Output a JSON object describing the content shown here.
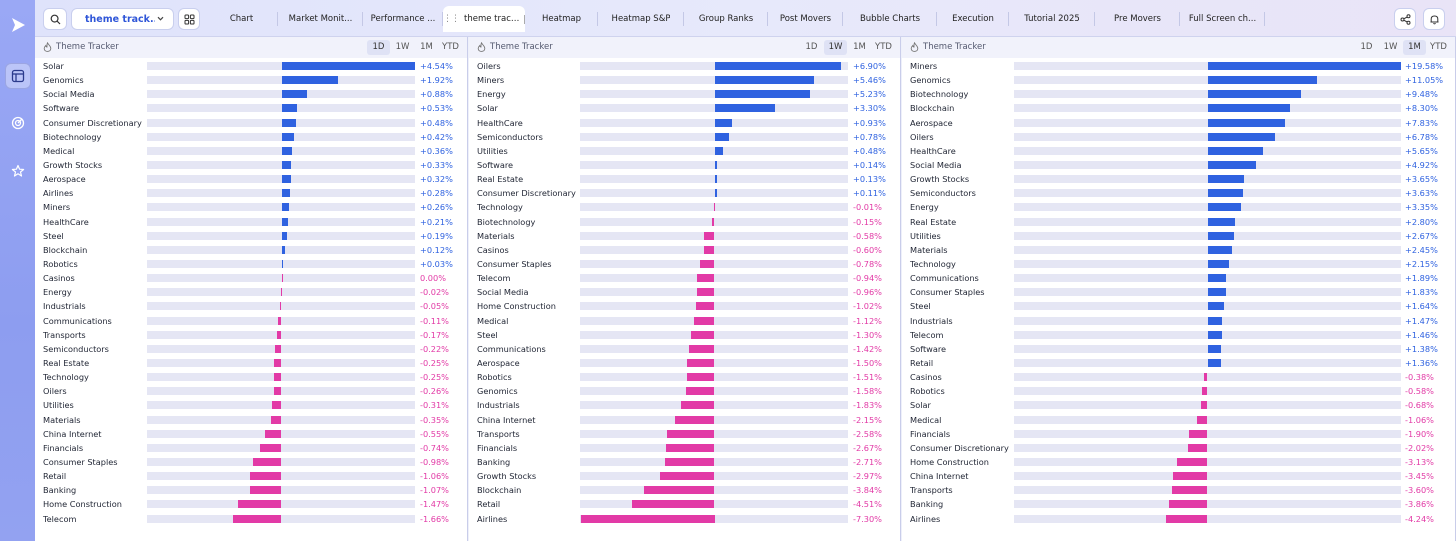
{
  "app": {
    "logo_icon": "play-logo"
  },
  "rail": {
    "items": [
      {
        "icon": "layout-icon",
        "active": true
      },
      {
        "icon": "target-icon",
        "active": false
      },
      {
        "icon": "star-icon",
        "active": false
      }
    ]
  },
  "toolbar": {
    "search_icon": "search-icon",
    "watchlist_value": "theme track...",
    "tabs": [
      {
        "label": "Chart",
        "width": 73
      },
      {
        "label": "Market Monit...",
        "width": 85
      },
      {
        "label": "Performance ...",
        "width": 80
      },
      {
        "label": "theme tracker",
        "width": 82,
        "active": true
      },
      {
        "label": "Heatmap",
        "width": 73
      },
      {
        "label": "Heatmap S&P",
        "width": 86
      },
      {
        "label": "Group Ranks",
        "width": 84
      },
      {
        "label": "Post Movers",
        "width": 75
      },
      {
        "label": "Bubble Charts",
        "width": 94
      },
      {
        "label": "Execution",
        "width": 72
      },
      {
        "label": "Tutorial 2025",
        "width": 86
      },
      {
        "label": "Pre Movers",
        "width": 85
      },
      {
        "label": "Full Screen ch...",
        "width": 85
      }
    ]
  },
  "colors": {
    "positive": "#2f62e0",
    "negative": "#e23aa6",
    "track": "#e5e6f4",
    "tab_active_text": "#2f56d8"
  },
  "panels": [
    {
      "title": "Theme Tracker",
      "periods": [
        "1D",
        "1W",
        "1M",
        "YTD"
      ],
      "active_period": "1D",
      "max_abs": 4.54,
      "rows": [
        {
          "name": "Solar",
          "value": 4.54,
          "label": "+4.54%"
        },
        {
          "name": "Genomics",
          "value": 1.92,
          "label": "+1.92%"
        },
        {
          "name": "Social Media",
          "value": 0.88,
          "label": "+0.88%"
        },
        {
          "name": "Software",
          "value": 0.53,
          "label": "+0.53%"
        },
        {
          "name": "Consumer Discretionary",
          "value": 0.48,
          "label": "+0.48%"
        },
        {
          "name": "Biotechnology",
          "value": 0.42,
          "label": "+0.42%"
        },
        {
          "name": "Medical",
          "value": 0.36,
          "label": "+0.36%"
        },
        {
          "name": "Growth Stocks",
          "value": 0.33,
          "label": "+0.33%"
        },
        {
          "name": "Aerospace",
          "value": 0.32,
          "label": "+0.32%"
        },
        {
          "name": "Airlines",
          "value": 0.28,
          "label": "+0.28%"
        },
        {
          "name": "Miners",
          "value": 0.26,
          "label": "+0.26%"
        },
        {
          "name": "HealthCare",
          "value": 0.21,
          "label": "+0.21%"
        },
        {
          "name": "Steel",
          "value": 0.19,
          "label": "+0.19%"
        },
        {
          "name": "Blockchain",
          "value": 0.12,
          "label": "+0.12%"
        },
        {
          "name": "Robotics",
          "value": 0.03,
          "label": "+0.03%"
        },
        {
          "name": "Casinos",
          "value": 0.0,
          "label": "0.00%"
        },
        {
          "name": "Energy",
          "value": -0.02,
          "label": "-0.02%"
        },
        {
          "name": "Industrials",
          "value": -0.05,
          "label": "-0.05%"
        },
        {
          "name": "Communications",
          "value": -0.11,
          "label": "-0.11%"
        },
        {
          "name": "Transports",
          "value": -0.17,
          "label": "-0.17%"
        },
        {
          "name": "Semiconductors",
          "value": -0.22,
          "label": "-0.22%"
        },
        {
          "name": "Real Estate",
          "value": -0.25,
          "label": "-0.25%"
        },
        {
          "name": "Technology",
          "value": -0.25,
          "label": "-0.25%"
        },
        {
          "name": "Oilers",
          "value": -0.26,
          "label": "-0.26%"
        },
        {
          "name": "Utilities",
          "value": -0.31,
          "label": "-0.31%"
        },
        {
          "name": "Materials",
          "value": -0.35,
          "label": "-0.35%"
        },
        {
          "name": "China Internet",
          "value": -0.55,
          "label": "-0.55%"
        },
        {
          "name": "Financials",
          "value": -0.74,
          "label": "-0.74%"
        },
        {
          "name": "Consumer Staples",
          "value": -0.98,
          "label": "-0.98%"
        },
        {
          "name": "Retail",
          "value": -1.06,
          "label": "-1.06%"
        },
        {
          "name": "Banking",
          "value": -1.07,
          "label": "-1.07%"
        },
        {
          "name": "Home Construction",
          "value": -1.47,
          "label": "-1.47%"
        },
        {
          "name": "Telecom",
          "value": -1.66,
          "label": "-1.66%"
        }
      ]
    },
    {
      "title": "Theme Tracker",
      "periods": [
        "1D",
        "1W",
        "1M",
        "YTD"
      ],
      "active_period": "1W",
      "max_abs": 7.3,
      "rows": [
        {
          "name": "Oilers",
          "value": 6.9,
          "label": "+6.90%"
        },
        {
          "name": "Miners",
          "value": 5.46,
          "label": "+5.46%"
        },
        {
          "name": "Energy",
          "value": 5.23,
          "label": "+5.23%"
        },
        {
          "name": "Solar",
          "value": 3.3,
          "label": "+3.30%"
        },
        {
          "name": "HealthCare",
          "value": 0.93,
          "label": "+0.93%"
        },
        {
          "name": "Semiconductors",
          "value": 0.78,
          "label": "+0.78%"
        },
        {
          "name": "Utilities",
          "value": 0.48,
          "label": "+0.48%"
        },
        {
          "name": "Software",
          "value": 0.14,
          "label": "+0.14%"
        },
        {
          "name": "Real Estate",
          "value": 0.13,
          "label": "+0.13%"
        },
        {
          "name": "Consumer Discretionary",
          "value": 0.11,
          "label": "+0.11%"
        },
        {
          "name": "Technology",
          "value": -0.01,
          "label": "-0.01%"
        },
        {
          "name": "Biotechnology",
          "value": -0.15,
          "label": "-0.15%"
        },
        {
          "name": "Materials",
          "value": -0.58,
          "label": "-0.58%"
        },
        {
          "name": "Casinos",
          "value": -0.6,
          "label": "-0.60%"
        },
        {
          "name": "Consumer Staples",
          "value": -0.78,
          "label": "-0.78%"
        },
        {
          "name": "Telecom",
          "value": -0.94,
          "label": "-0.94%"
        },
        {
          "name": "Social Media",
          "value": -0.96,
          "label": "-0.96%"
        },
        {
          "name": "Home Construction",
          "value": -1.02,
          "label": "-1.02%"
        },
        {
          "name": "Medical",
          "value": -1.12,
          "label": "-1.12%"
        },
        {
          "name": "Steel",
          "value": -1.3,
          "label": "-1.30%"
        },
        {
          "name": "Communications",
          "value": -1.42,
          "label": "-1.42%"
        },
        {
          "name": "Aerospace",
          "value": -1.5,
          "label": "-1.50%"
        },
        {
          "name": "Robotics",
          "value": -1.51,
          "label": "-1.51%"
        },
        {
          "name": "Genomics",
          "value": -1.58,
          "label": "-1.58%"
        },
        {
          "name": "Industrials",
          "value": -1.83,
          "label": "-1.83%"
        },
        {
          "name": "China Internet",
          "value": -2.15,
          "label": "-2.15%"
        },
        {
          "name": "Transports",
          "value": -2.58,
          "label": "-2.58%"
        },
        {
          "name": "Financials",
          "value": -2.67,
          "label": "-2.67%"
        },
        {
          "name": "Banking",
          "value": -2.71,
          "label": "-2.71%"
        },
        {
          "name": "Growth Stocks",
          "value": -2.97,
          "label": "-2.97%"
        },
        {
          "name": "Blockchain",
          "value": -3.84,
          "label": "-3.84%"
        },
        {
          "name": "Retail",
          "value": -4.51,
          "label": "-4.51%"
        },
        {
          "name": "Airlines",
          "value": -7.3,
          "label": "-7.30%"
        }
      ]
    },
    {
      "title": "Theme Tracker",
      "periods": [
        "1D",
        "1W",
        "1M",
        "YTD"
      ],
      "active_period": "1M",
      "max_abs": 19.58,
      "rows": [
        {
          "name": "Miners",
          "value": 19.58,
          "label": "+19.58%"
        },
        {
          "name": "Genomics",
          "value": 11.05,
          "label": "+11.05%"
        },
        {
          "name": "Biotechnology",
          "value": 9.48,
          "label": "+9.48%"
        },
        {
          "name": "Blockchain",
          "value": 8.3,
          "label": "+8.30%"
        },
        {
          "name": "Aerospace",
          "value": 7.83,
          "label": "+7.83%"
        },
        {
          "name": "Oilers",
          "value": 6.78,
          "label": "+6.78%"
        },
        {
          "name": "HealthCare",
          "value": 5.65,
          "label": "+5.65%"
        },
        {
          "name": "Social Media",
          "value": 4.92,
          "label": "+4.92%"
        },
        {
          "name": "Growth Stocks",
          "value": 3.65,
          "label": "+3.65%"
        },
        {
          "name": "Semiconductors",
          "value": 3.63,
          "label": "+3.63%"
        },
        {
          "name": "Energy",
          "value": 3.35,
          "label": "+3.35%"
        },
        {
          "name": "Real Estate",
          "value": 2.8,
          "label": "+2.80%"
        },
        {
          "name": "Utilities",
          "value": 2.67,
          "label": "+2.67%"
        },
        {
          "name": "Materials",
          "value": 2.45,
          "label": "+2.45%"
        },
        {
          "name": "Technology",
          "value": 2.15,
          "label": "+2.15%"
        },
        {
          "name": "Communications",
          "value": 1.89,
          "label": "+1.89%"
        },
        {
          "name": "Consumer Staples",
          "value": 1.83,
          "label": "+1.83%"
        },
        {
          "name": "Steel",
          "value": 1.64,
          "label": "+1.64%"
        },
        {
          "name": "Industrials",
          "value": 1.47,
          "label": "+1.47%"
        },
        {
          "name": "Telecom",
          "value": 1.46,
          "label": "+1.46%"
        },
        {
          "name": "Software",
          "value": 1.38,
          "label": "+1.38%"
        },
        {
          "name": "Retail",
          "value": 1.36,
          "label": "+1.36%"
        },
        {
          "name": "Casinos",
          "value": -0.38,
          "label": "-0.38%"
        },
        {
          "name": "Robotics",
          "value": -0.58,
          "label": "-0.58%"
        },
        {
          "name": "Solar",
          "value": -0.68,
          "label": "-0.68%"
        },
        {
          "name": "Medical",
          "value": -1.06,
          "label": "-1.06%"
        },
        {
          "name": "Financials",
          "value": -1.9,
          "label": "-1.90%"
        },
        {
          "name": "Consumer Discretionary",
          "value": -2.02,
          "label": "-2.02%"
        },
        {
          "name": "Home Construction",
          "value": -3.13,
          "label": "-3.13%"
        },
        {
          "name": "China Internet",
          "value": -3.45,
          "label": "-3.45%"
        },
        {
          "name": "Transports",
          "value": -3.6,
          "label": "-3.60%"
        },
        {
          "name": "Banking",
          "value": -3.86,
          "label": "-3.86%"
        },
        {
          "name": "Airlines",
          "value": -4.24,
          "label": "-4.24%"
        }
      ]
    }
  ]
}
